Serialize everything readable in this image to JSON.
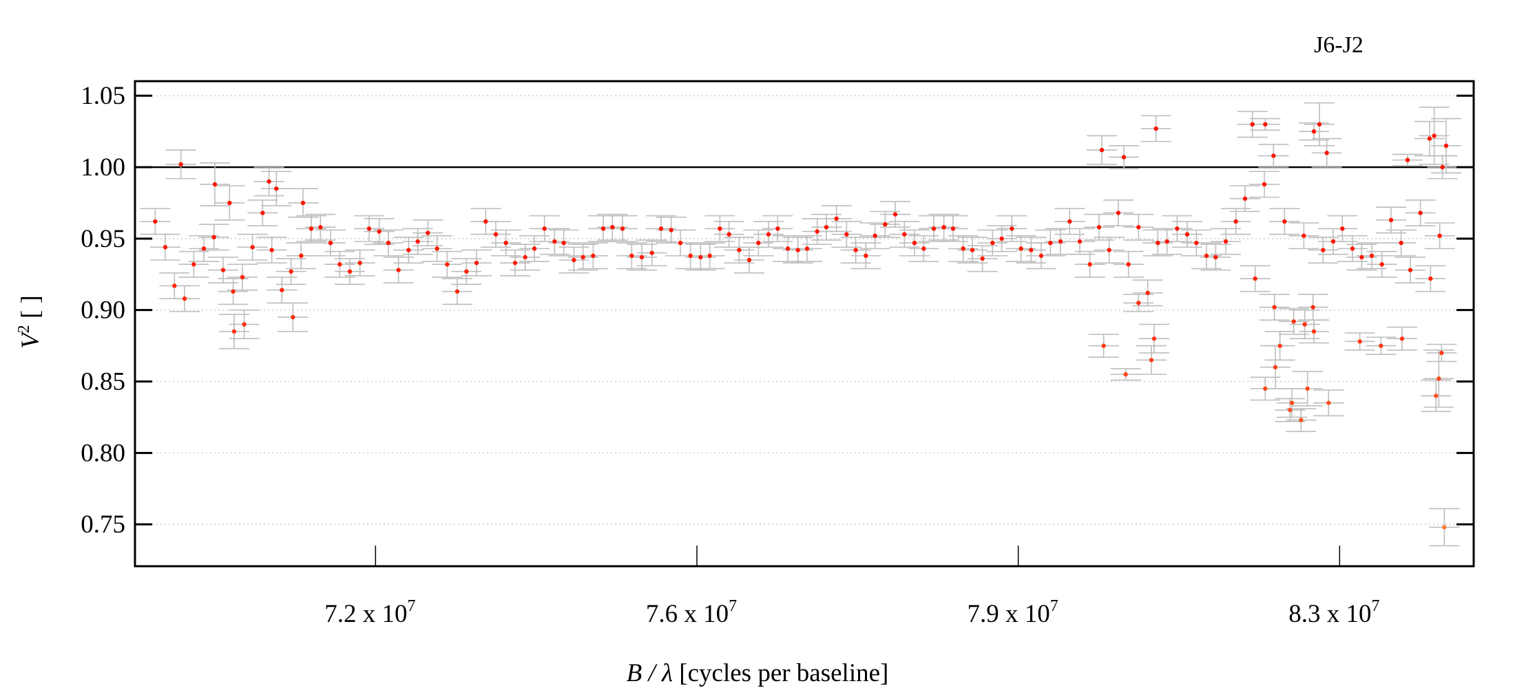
{
  "chart_data": {
    "type": "scatter",
    "title": "J6-J2",
    "xlabel_italic": "B / λ",
    "xlabel_rest": " [cycles per baseline]",
    "ylabel_italic": "V",
    "ylabel_sup": "2",
    "ylabel_rest": " [ ]",
    "x_unit_exponent": 7,
    "xlim": [
      6.938,
      8.396
    ],
    "ylim": [
      0.7207,
      1.0602
    ],
    "grid": "horizontal-dotted",
    "reference_line_y": 1.0,
    "yticks": [
      0.75,
      0.8,
      0.85,
      0.9,
      0.95,
      1.0,
      1.05
    ],
    "ytick_labels": [
      "0.75",
      "0.80",
      "0.85",
      "0.90",
      "0.95",
      "1.00",
      "1.05"
    ],
    "xticks": [
      7.2,
      7.55,
      7.9,
      8.25
    ],
    "xtick_labels": [
      {
        "base": "7.2 x 10",
        "exp": "7"
      },
      {
        "base": "7.6 x 10",
        "exp": "7"
      },
      {
        "base": "7.9 x 10",
        "exp": "7"
      },
      {
        "base": "8.3 x 10",
        "exp": "7"
      }
    ],
    "colors": {
      "high": "#ff1500",
      "low": "#ff7a3a",
      "errorbar": "#bdbdbd",
      "grid": "#cccccc"
    },
    "series": [
      {
        "name": "main",
        "yerr": 0.009,
        "x": [
          6.96,
          6.971,
          6.981,
          6.992,
          7.002,
          7.013,
          7.024,
          7.034,
          7.045,
          7.055,
          7.066,
          7.077,
          7.087,
          7.098,
          7.108,
          7.119,
          7.13,
          7.14,
          7.151,
          7.161,
          7.172,
          7.183,
          7.193,
          7.204,
          7.214,
          7.225,
          7.236,
          7.246,
          7.257,
          7.267,
          7.278,
          7.289,
          7.299,
          7.31,
          7.32,
          7.331,
          7.342,
          7.352,
          7.363,
          7.373,
          7.384,
          7.395,
          7.405,
          7.416,
          7.426,
          7.437,
          7.448,
          7.458,
          7.469,
          7.479,
          7.49,
          7.501,
          7.511,
          7.522,
          7.532,
          7.543,
          7.554,
          7.564,
          7.575,
          7.585,
          7.596,
          7.607,
          7.617,
          7.628,
          7.638,
          7.649,
          7.66,
          7.67,
          7.681,
          7.691,
          7.702,
          7.713,
          7.723,
          7.734,
          7.744,
          7.755,
          7.766,
          7.776,
          7.787,
          7.797,
          7.808,
          7.819,
          7.829,
          7.84,
          7.85,
          7.861,
          7.872,
          7.882,
          7.893,
          7.903,
          7.914,
          7.925,
          7.935,
          7.946,
          7.956,
          7.967,
          7.978,
          7.988,
          7.999,
          8.009,
          8.02,
          8.031,
          8.041,
          8.052,
          8.062,
          8.073,
          8.084,
          8.094,
          8.105,
          8.115,
          8.126,
          8.137,
          8.147,
          8.158,
          8.168,
          8.179,
          8.19,
          8.2,
          8.211,
          8.221,
          8.232,
          8.243,
          8.253,
          8.264,
          8.274,
          8.285,
          8.296,
          8.306,
          8.317,
          8.327,
          8.338,
          8.349,
          8.359
        ],
        "y": [
          0.962,
          0.944,
          0.917,
          0.908,
          0.932,
          0.943,
          0.951,
          0.928,
          0.913,
          0.923,
          0.944,
          0.968,
          0.942,
          0.914,
          0.927,
          0.938,
          0.957,
          0.958,
          0.947,
          0.932,
          0.927,
          0.933,
          0.957,
          0.955,
          0.947,
          0.928,
          0.942,
          0.948,
          0.954,
          0.943,
          0.932,
          0.913,
          0.927,
          0.933,
          0.962,
          0.953,
          0.947,
          0.933,
          0.937,
          0.943,
          0.957,
          0.948,
          0.947,
          0.935,
          0.937,
          0.938,
          0.957,
          0.958,
          0.957,
          0.938,
          0.937,
          0.94,
          0.957,
          0.956,
          0.947,
          0.938,
          0.937,
          0.938,
          0.957,
          0.953,
          0.942,
          0.935,
          0.947,
          0.953,
          0.957,
          0.943,
          0.942,
          0.943,
          0.955,
          0.958,
          0.964,
          0.953,
          0.942,
          0.938,
          0.952,
          0.96,
          0.967,
          0.953,
          0.947,
          0.943,
          0.957,
          0.958,
          0.957,
          0.943,
          0.942,
          0.936,
          0.947,
          0.95,
          0.957,
          0.943,
          0.942,
          0.938,
          0.947,
          0.948,
          0.962,
          0.948,
          0.932,
          0.958,
          0.942,
          0.968,
          0.932,
          0.958,
          0.912,
          0.947,
          0.948,
          0.957,
          0.953,
          0.947,
          0.938,
          0.937,
          0.948,
          0.962,
          0.978,
          0.922,
          0.988,
          0.902,
          0.962,
          0.892,
          0.952,
          0.902,
          0.942,
          0.948,
          0.957,
          0.943,
          0.937,
          0.938,
          0.932,
          0.963,
          0.947,
          0.928,
          0.968,
          0.922,
          0.952
        ]
      },
      {
        "name": "scattered",
        "x": [
          6.988,
          7.025,
          7.041,
          7.046,
          7.057,
          7.084,
          7.092,
          7.11,
          7.121,
          7.991,
          7.993,
          8.015,
          8.017,
          8.031,
          8.045,
          8.05,
          8.048,
          8.155,
          8.169,
          8.169,
          8.178,
          8.18,
          8.185,
          8.196,
          8.198,
          8.208,
          8.215,
          8.222,
          8.228,
          8.236,
          8.238,
          8.222,
          8.272,
          8.295,
          8.318,
          8.324,
          8.348,
          8.353,
          8.355,
          8.358,
          8.361,
          8.362,
          8.364,
          8.366,
          8.212
        ],
        "y": [
          1.002,
          0.988,
          0.975,
          0.885,
          0.89,
          0.99,
          0.985,
          0.895,
          0.975,
          1.012,
          0.875,
          1.007,
          0.855,
          0.905,
          0.865,
          1.027,
          0.88,
          1.03,
          1.03,
          0.845,
          1.008,
          0.86,
          0.875,
          0.83,
          0.835,
          0.823,
          0.845,
          1.025,
          1.03,
          1.01,
          0.835,
          0.885,
          0.878,
          0.875,
          0.88,
          1.005,
          1.02,
          1.022,
          0.84,
          0.852,
          0.87,
          1.0,
          0.748,
          1.015,
          0.89
        ],
        "yerr": [
          0.01,
          0.015,
          0.012,
          0.012,
          0.01,
          0.01,
          0.012,
          0.01,
          0.01,
          0.01,
          0.008,
          0.008,
          0.004,
          0.006,
          0.01,
          0.009,
          0.01,
          0.009,
          0.004,
          0.008,
          0.008,
          0.015,
          0.01,
          0.008,
          0.01,
          0.008,
          0.012,
          0.006,
          0.015,
          0.01,
          0.009,
          0.008,
          0.006,
          0.006,
          0.008,
          0.004,
          0.012,
          0.02,
          0.011,
          0.02,
          0.006,
          0.008,
          0.013,
          0.019,
          0.01
        ]
      }
    ]
  }
}
